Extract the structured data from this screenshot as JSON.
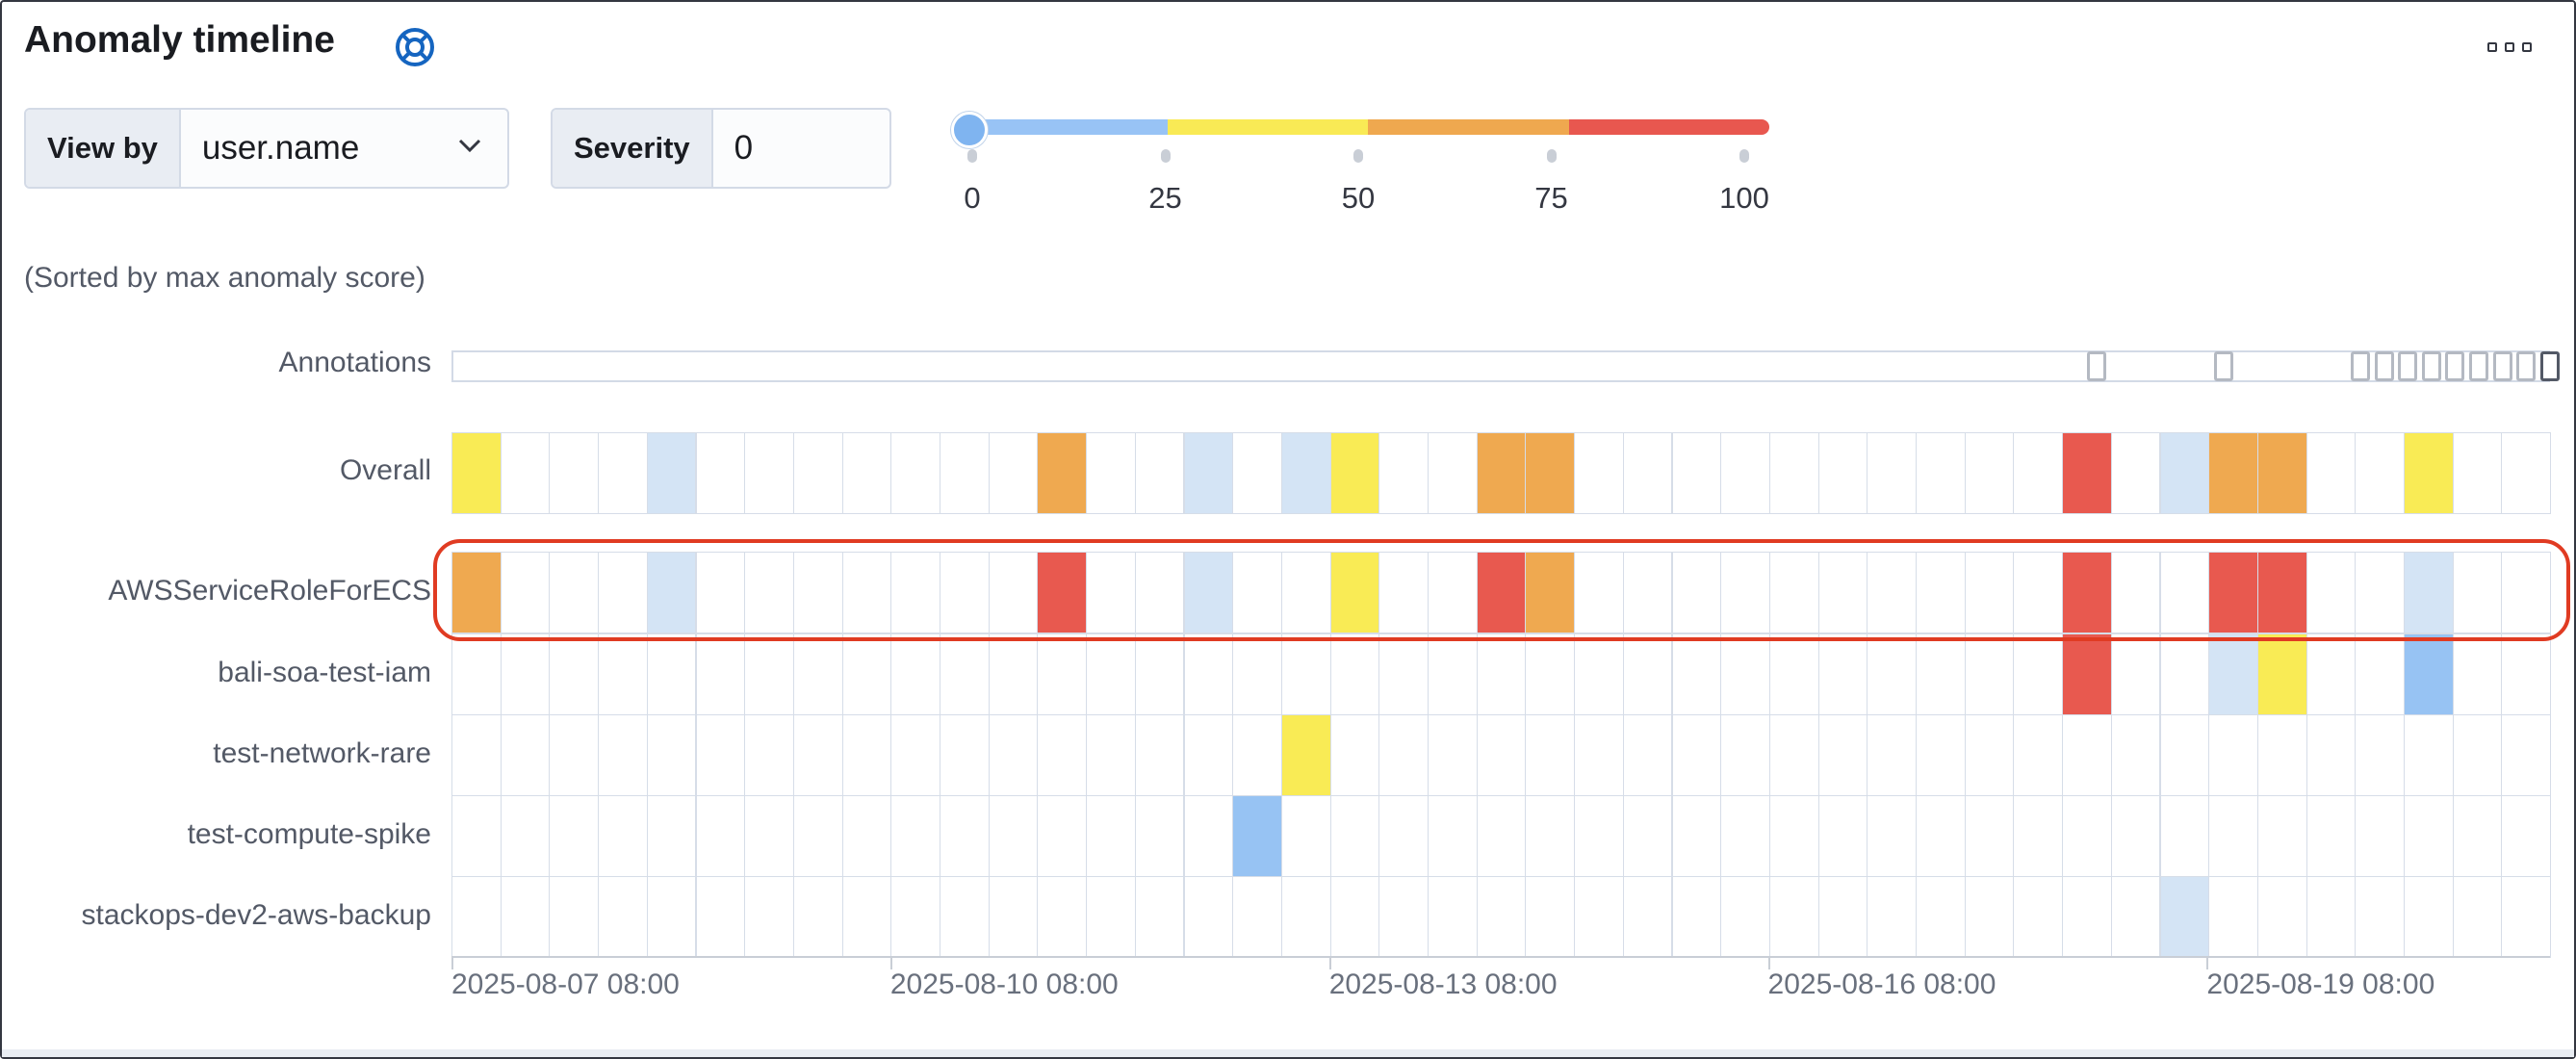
{
  "panel": {
    "title": "Anomaly timeline",
    "help_icon": "lifebuoy-icon",
    "more_icon": "ellipsis-icon"
  },
  "controls": {
    "view_by": {
      "label": "View by",
      "value": "user.name"
    },
    "severity": {
      "label": "Severity",
      "value": "0"
    }
  },
  "severity_slider": {
    "value": 0,
    "ticks": [
      "0",
      "25",
      "50",
      "75",
      "100"
    ],
    "segment_colors": [
      "#98c3f5",
      "#f9ea55",
      "#efa84f",
      "#e8574f"
    ]
  },
  "sorted_note": "(Sorted by max anomaly score)",
  "colors": {
    "low": "#d4e4f5",
    "blue": "#97c3f3",
    "yellow": "#f9eb55",
    "orange": "#efa950",
    "red": "#e8594f",
    "highlight": "#e03b22"
  },
  "annotations": {
    "label": "Annotations",
    "marked_columns": [
      34,
      37,
      39,
      40,
      41,
      42,
      43,
      44,
      45,
      46,
      47
    ]
  },
  "timeline": {
    "column_count": 43,
    "overall": {
      "label": "Overall",
      "cells": [
        {
          "col": 0,
          "severity": "yellow"
        },
        {
          "col": 4,
          "severity": "low"
        },
        {
          "col": 12,
          "severity": "orange"
        },
        {
          "col": 15,
          "severity": "low"
        },
        {
          "col": 17,
          "severity": "low"
        },
        {
          "col": 18,
          "severity": "yellow"
        },
        {
          "col": 21,
          "severity": "orange"
        },
        {
          "col": 22,
          "severity": "orange"
        },
        {
          "col": 33,
          "severity": "red"
        },
        {
          "col": 35,
          "severity": "low"
        },
        {
          "col": 36,
          "severity": "orange"
        },
        {
          "col": 37,
          "severity": "orange"
        },
        {
          "col": 40,
          "severity": "yellow"
        }
      ]
    },
    "rows": [
      {
        "label": "AWSServiceRoleForECS",
        "highlighted": true,
        "cells": [
          {
            "col": 0,
            "severity": "orange"
          },
          {
            "col": 4,
            "severity": "low"
          },
          {
            "col": 12,
            "severity": "red"
          },
          {
            "col": 15,
            "severity": "low"
          },
          {
            "col": 18,
            "severity": "yellow"
          },
          {
            "col": 21,
            "severity": "red"
          },
          {
            "col": 22,
            "severity": "orange"
          },
          {
            "col": 33,
            "severity": "red"
          },
          {
            "col": 36,
            "severity": "red"
          },
          {
            "col": 37,
            "severity": "red"
          },
          {
            "col": 40,
            "severity": "low"
          }
        ]
      },
      {
        "label": "bali-soa-test-iam",
        "highlighted": false,
        "cells": [
          {
            "col": 33,
            "severity": "red"
          },
          {
            "col": 36,
            "severity": "low"
          },
          {
            "col": 37,
            "severity": "yellow"
          },
          {
            "col": 40,
            "severity": "blue"
          }
        ]
      },
      {
        "label": "test-network-rare",
        "highlighted": false,
        "cells": [
          {
            "col": 17,
            "severity": "yellow"
          }
        ]
      },
      {
        "label": "test-compute-spike",
        "highlighted": false,
        "cells": [
          {
            "col": 16,
            "severity": "blue"
          }
        ]
      },
      {
        "label": "stackops-dev2-aws-backup",
        "highlighted": false,
        "cells": [
          {
            "col": 35,
            "severity": "low"
          }
        ]
      }
    ],
    "x_axis": {
      "labels": [
        "2025-08-07 08:00",
        "2025-08-10 08:00",
        "2025-08-13 08:00",
        "2025-08-16 08:00",
        "2025-08-19 08:00"
      ],
      "label_columns": [
        0,
        9,
        18,
        27,
        36
      ]
    }
  }
}
